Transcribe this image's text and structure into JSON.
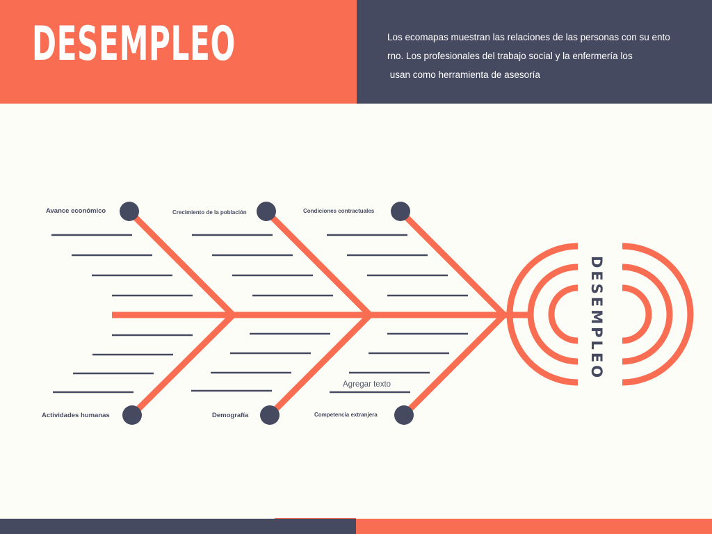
{
  "header": {
    "title": "DESEMPLEO",
    "description_lines": [
      "Los ecomapas muestran las relaciones de las personas con su ento",
      "rno. Los profesionales del trabajo social y la enfermería los",
      " usan como herramienta de asesoría"
    ]
  },
  "diagram": {
    "head_label": "DESEMPLEO",
    "causes": {
      "top": [
        "Avance económico",
        "Crecimiento de la población",
        "Condiciones contractuales"
      ],
      "bottom": [
        "Actividades humanas",
        "Demografía",
        "Competencia extranjera"
      ]
    },
    "placeholder_text": "Agregar texto"
  },
  "colors": {
    "accent": "#f96e53",
    "dark": "#464a60",
    "background": "#fdfdf7",
    "text_on_dark": "#ffffff"
  }
}
